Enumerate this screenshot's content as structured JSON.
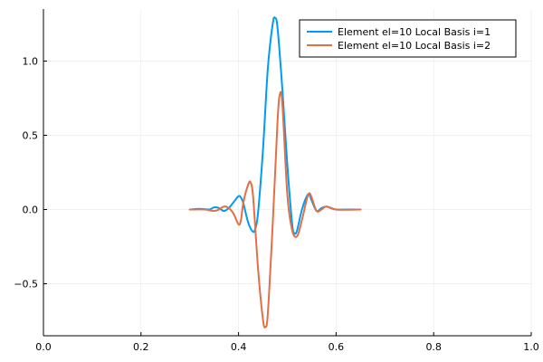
{
  "chart_data": {
    "type": "line",
    "title": "",
    "xlabel": "",
    "ylabel": "",
    "xlim": [
      0.0,
      1.0
    ],
    "ylim": [
      -0.85,
      1.35
    ],
    "xticks": [
      0.0,
      0.2,
      0.4,
      0.6,
      0.8,
      1.0
    ],
    "xtick_labels": [
      "0.0",
      "0.2",
      "0.4",
      "0.6",
      "0.8",
      "1.0"
    ],
    "yticks": [
      -0.5,
      0.0,
      0.5,
      1.0
    ],
    "ytick_labels": [
      "−0.5",
      "0.0",
      "0.5",
      "1.0"
    ],
    "grid": true,
    "legend_position": "top-right",
    "series": [
      {
        "name": "Element el=10 Local Basis i=1",
        "color": "#009af9",
        "x": [
          0.3,
          0.32,
          0.34,
          0.35,
          0.36,
          0.37,
          0.38,
          0.39,
          0.4,
          0.405,
          0.41,
          0.42,
          0.43,
          0.435,
          0.44,
          0.45,
          0.46,
          0.47,
          0.475,
          0.48,
          0.49,
          0.5,
          0.51,
          0.515,
          0.52,
          0.53,
          0.54,
          0.545,
          0.55,
          0.56,
          0.57,
          0.58,
          0.59,
          0.6,
          0.62,
          0.65
        ],
        "y": [
          0.0,
          0.005,
          0.0,
          0.015,
          0.01,
          -0.01,
          0.01,
          0.05,
          0.09,
          0.08,
          0.04,
          -0.09,
          -0.15,
          -0.12,
          -0.02,
          0.4,
          0.95,
          1.25,
          1.29,
          1.22,
          0.8,
          0.3,
          -0.1,
          -0.16,
          -0.14,
          0.0,
          0.09,
          0.1,
          0.06,
          -0.01,
          0.01,
          0.02,
          0.01,
          0.0,
          0.0,
          0.0
        ]
      },
      {
        "name": "Element el=10 Local Basis i=2",
        "color": "#e26f46",
        "x": [
          0.3,
          0.33,
          0.35,
          0.36,
          0.37,
          0.38,
          0.39,
          0.4,
          0.405,
          0.41,
          0.42,
          0.425,
          0.43,
          0.44,
          0.45,
          0.455,
          0.46,
          0.47,
          0.48,
          0.485,
          0.49,
          0.5,
          0.51,
          0.52,
          0.53,
          0.54,
          0.545,
          0.55,
          0.56,
          0.57,
          0.58,
          0.6,
          0.65
        ],
        "y": [
          0.0,
          0.0,
          -0.01,
          0.0,
          0.02,
          0.01,
          -0.03,
          -0.1,
          -0.07,
          0.05,
          0.17,
          0.18,
          0.08,
          -0.4,
          -0.74,
          -0.79,
          -0.7,
          -0.1,
          0.6,
          0.78,
          0.7,
          0.1,
          -0.14,
          -0.18,
          -0.07,
          0.07,
          0.11,
          0.08,
          -0.01,
          0.0,
          0.02,
          0.0,
          0.0
        ]
      }
    ]
  }
}
